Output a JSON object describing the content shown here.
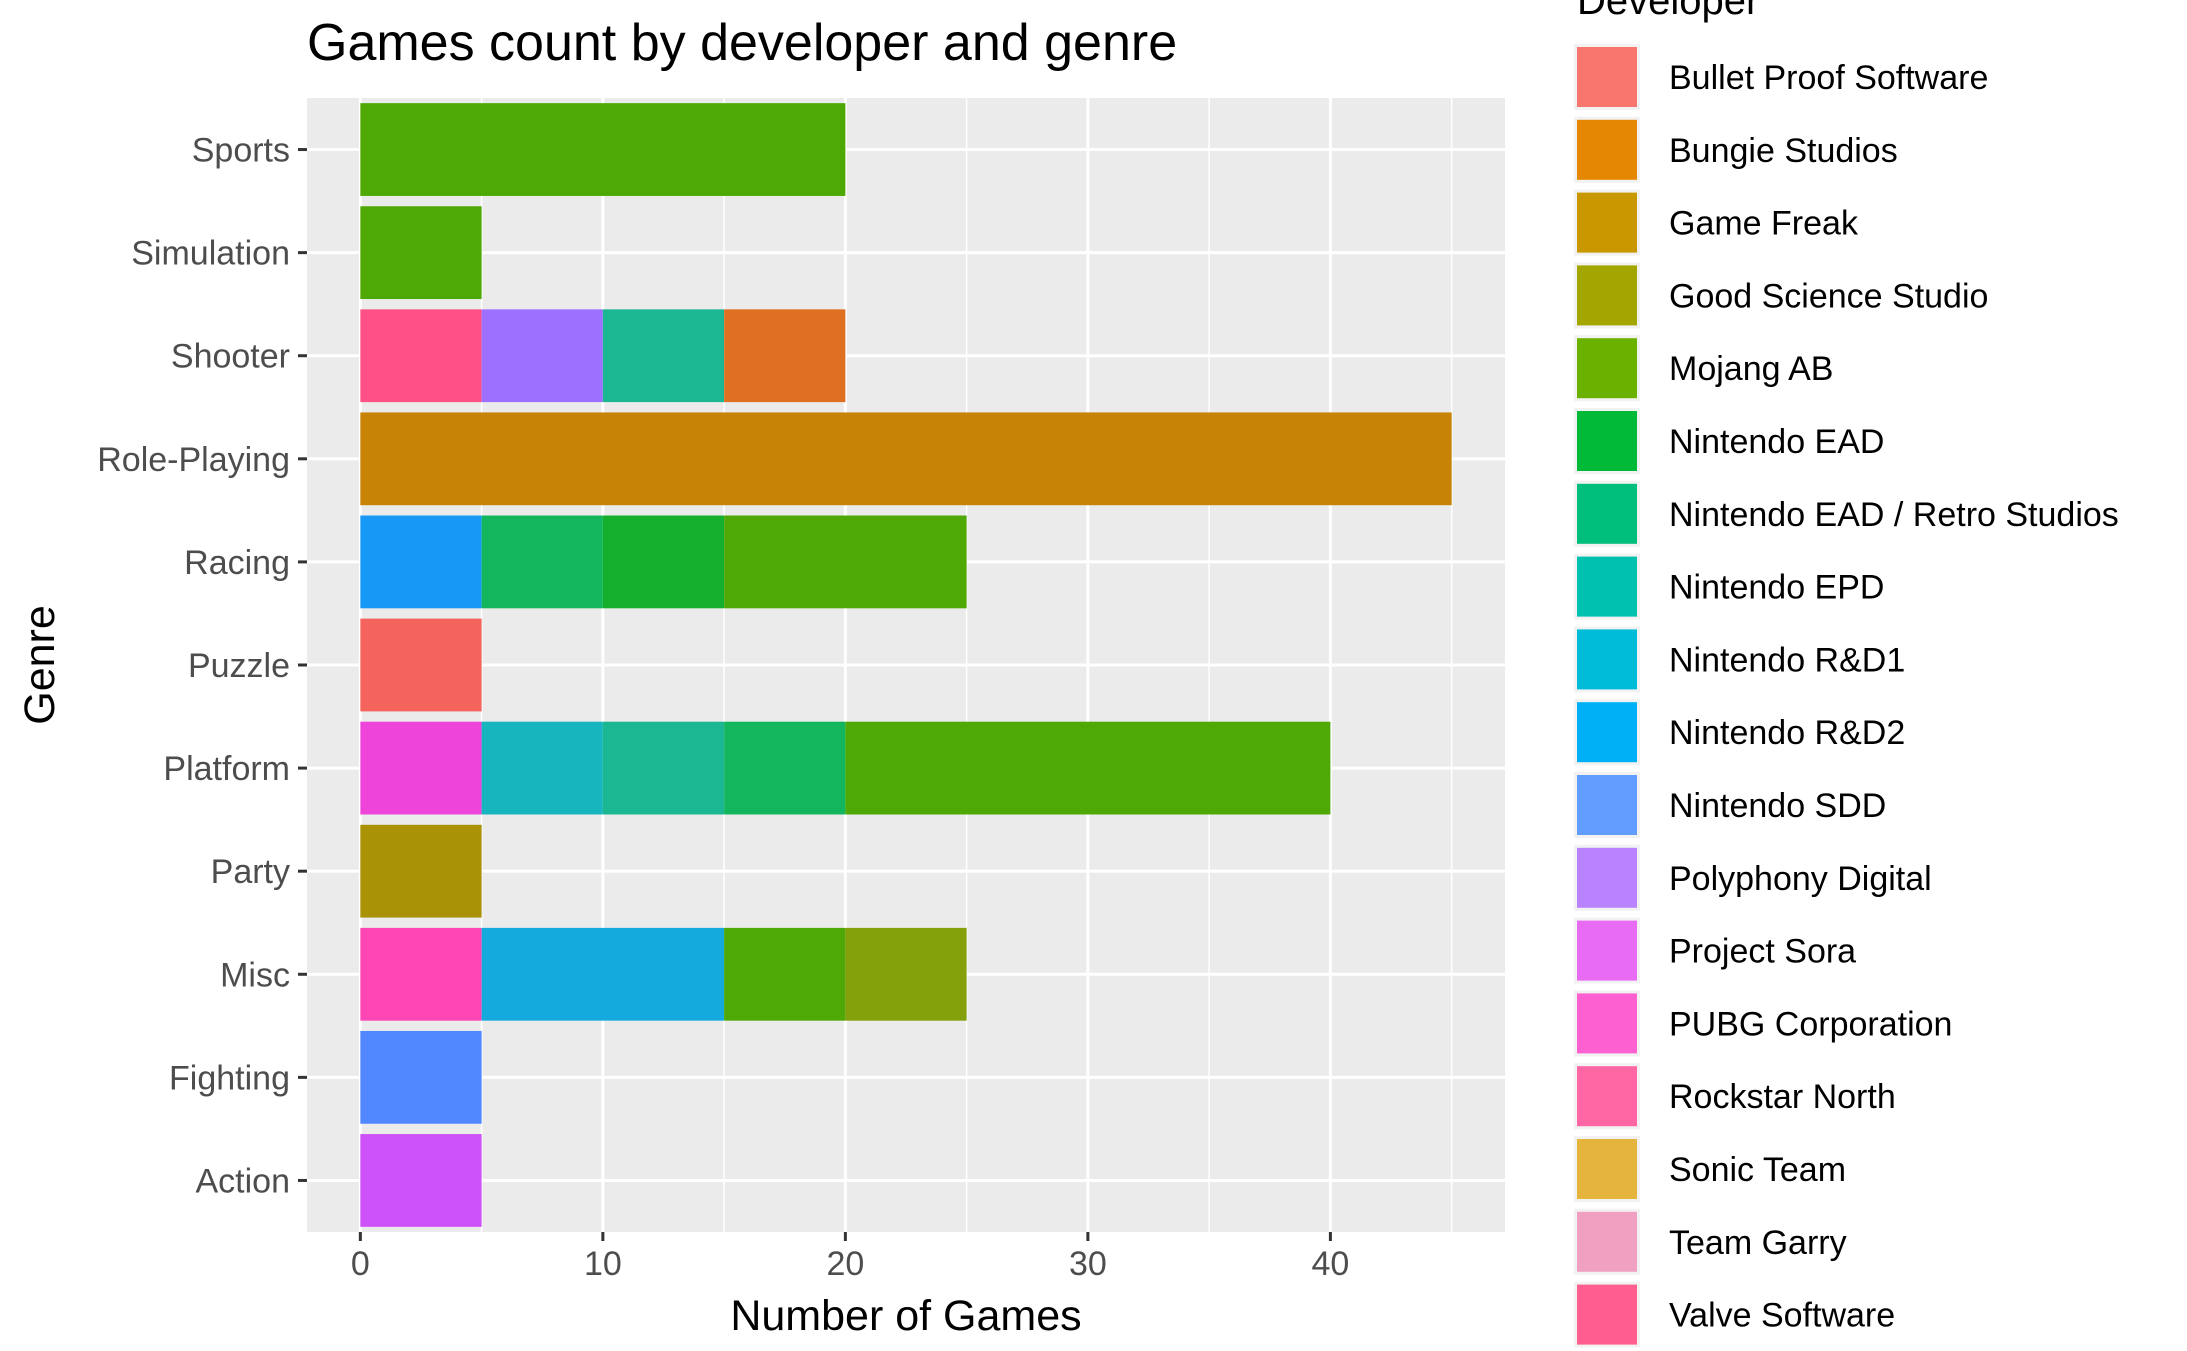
{
  "chart_data": {
    "type": "bar",
    "orientation": "horizontal",
    "stacked": true,
    "title": "Games count by developer and genre",
    "xlabel": "Number of Games",
    "ylabel": "Genre",
    "xlim": [
      -2.2,
      47.2
    ],
    "xticks": [
      0,
      10,
      20,
      30,
      40
    ],
    "grid": true,
    "legend": {
      "title": "Developer",
      "position": "right"
    },
    "categories": [
      "Action",
      "Fighting",
      "Misc",
      "Party",
      "Platform",
      "Puzzle",
      "Racing",
      "Role-Playing",
      "Shooter",
      "Simulation",
      "Sports"
    ],
    "developers": [
      {
        "name": "Bullet Proof Software",
        "color": "#F8766D"
      },
      {
        "name": "Bungie Studios",
        "color": "#E58700"
      },
      {
        "name": "Game Freak",
        "color": "#C99800"
      },
      {
        "name": "Good Science Studio",
        "color": "#A3A500"
      },
      {
        "name": "Mojang AB",
        "color": "#6BB100"
      },
      {
        "name": "Nintendo EAD",
        "color": "#00BA38"
      },
      {
        "name": "Nintendo EAD / Retro Studios",
        "color": "#00BF7D"
      },
      {
        "name": "Nintendo EPD",
        "color": "#00C0AF"
      },
      {
        "name": "Nintendo R&D1",
        "color": "#00BCD8"
      },
      {
        "name": "Nintendo R&D2",
        "color": "#00B0F6"
      },
      {
        "name": "Nintendo SDD",
        "color": "#619CFF"
      },
      {
        "name": "Polyphony Digital",
        "color": "#B983FF"
      },
      {
        "name": "Project Sora",
        "color": "#E76BF3"
      },
      {
        "name": "PUBG Corporation",
        "color": "#FD61D1"
      },
      {
        "name": "Rockstar North",
        "color": "#FF67A4"
      },
      {
        "name": "Sonic Team",
        "color": "#E4B43D"
      },
      {
        "name": "Team Garry",
        "color": "#F0A1C2"
      },
      {
        "name": "Valve Software",
        "color": "#FF5E8F"
      }
    ],
    "segments": [
      {
        "category": "Action",
        "color": "#CD52F8",
        "start": 0,
        "end": 5
      },
      {
        "category": "Fighting",
        "color": "#5187FF",
        "start": 0,
        "end": 5
      },
      {
        "category": "Misc",
        "color": "#FF46B4",
        "start": 0,
        "end": 5
      },
      {
        "category": "Misc",
        "color": "#14AADE",
        "start": 5,
        "end": 15
      },
      {
        "category": "Misc",
        "color": "#4EA805",
        "start": 15,
        "end": 20
      },
      {
        "category": "Misc",
        "color": "#84A00A",
        "start": 20,
        "end": 25
      },
      {
        "category": "Party",
        "color": "#A99206",
        "start": 0,
        "end": 5
      },
      {
        "category": "Platform",
        "color": "#EE44D9",
        "start": 0,
        "end": 5
      },
      {
        "category": "Platform",
        "color": "#17B5BE",
        "start": 5,
        "end": 10
      },
      {
        "category": "Platform",
        "color": "#1BB692",
        "start": 10,
        "end": 15
      },
      {
        "category": "Platform",
        "color": "#14B65D",
        "start": 15,
        "end": 20
      },
      {
        "category": "Platform",
        "color": "#4EA805",
        "start": 20,
        "end": 40
      },
      {
        "category": "Puzzle",
        "color": "#F4645D",
        "start": 0,
        "end": 5
      },
      {
        "category": "Racing",
        "color": "#1699F6",
        "start": 0,
        "end": 5
      },
      {
        "category": "Racing",
        "color": "#14B65D",
        "start": 5,
        "end": 10
      },
      {
        "category": "Racing",
        "color": "#14AF2C",
        "start": 10,
        "end": 15
      },
      {
        "category": "Racing",
        "color": "#4EA805",
        "start": 15,
        "end": 25
      },
      {
        "category": "Role-Playing",
        "color": "#C78306",
        "start": 0,
        "end": 45
      },
      {
        "category": "Shooter",
        "color": "#FF5186",
        "start": 0,
        "end": 5
      },
      {
        "category": "Shooter",
        "color": "#9D70FF",
        "start": 5,
        "end": 10
      },
      {
        "category": "Shooter",
        "color": "#1BB692",
        "start": 10,
        "end": 15
      },
      {
        "category": "Shooter",
        "color": "#E07021",
        "start": 15,
        "end": 20
      },
      {
        "category": "Simulation",
        "color": "#4EA805",
        "start": 0,
        "end": 5
      },
      {
        "category": "Sports",
        "color": "#4EA805",
        "start": 0,
        "end": 20
      }
    ]
  }
}
